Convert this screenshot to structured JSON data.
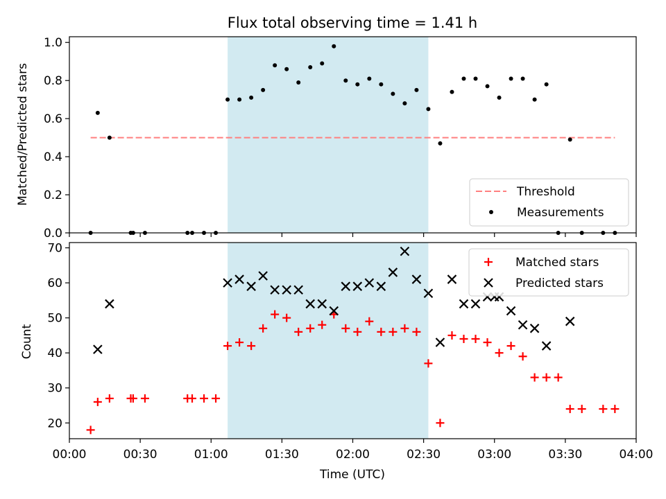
{
  "chart_data": [
    {
      "type": "scatter",
      "title": "Flux total observing time = 1.41 h",
      "xlabel": "",
      "ylabel": "Matched/Predicted stars",
      "xlim": [
        "00:00",
        "04:00"
      ],
      "ylim": [
        0,
        1.03
      ],
      "yticks": [
        "0.0",
        "0.2",
        "0.4",
        "0.6",
        "0.8",
        "1.0"
      ],
      "shaded_interval": [
        "01:07",
        "02:32"
      ],
      "shade_color": "#add8e6",
      "threshold": {
        "name": "Threshold",
        "value": 0.5,
        "x_range": [
          "00:09",
          "03:51"
        ],
        "color": "#ff7f7f"
      },
      "legend": [
        "Threshold",
        "Measurements"
      ],
      "legend_loc": "lower right",
      "series": [
        {
          "name": "Measurements",
          "color": "#000000",
          "marker": "dot",
          "points": [
            [
              "00:09",
              0.0
            ],
            [
              "00:12",
              0.63
            ],
            [
              "00:17",
              0.5
            ],
            [
              "00:26",
              0.0
            ],
            [
              "00:27",
              0.0
            ],
            [
              "00:32",
              0.0
            ],
            [
              "00:50",
              0.0
            ],
            [
              "00:52",
              0.0
            ],
            [
              "00:57",
              0.0
            ],
            [
              "01:02",
              0.0
            ],
            [
              "01:07",
              0.7
            ],
            [
              "01:12",
              0.7
            ],
            [
              "01:17",
              0.71
            ],
            [
              "01:22",
              0.75
            ],
            [
              "01:27",
              0.88
            ],
            [
              "01:32",
              0.86
            ],
            [
              "01:37",
              0.79
            ],
            [
              "01:42",
              0.87
            ],
            [
              "01:47",
              0.89
            ],
            [
              "01:52",
              0.98
            ],
            [
              "01:57",
              0.8
            ],
            [
              "02:02",
              0.78
            ],
            [
              "02:07",
              0.81
            ],
            [
              "02:12",
              0.78
            ],
            [
              "02:17",
              0.73
            ],
            [
              "02:22",
              0.68
            ],
            [
              "02:27",
              0.75
            ],
            [
              "02:32",
              0.65
            ],
            [
              "02:37",
              0.47
            ],
            [
              "02:42",
              0.74
            ],
            [
              "02:47",
              0.81
            ],
            [
              "02:52",
              0.81
            ],
            [
              "02:57",
              0.77
            ],
            [
              "03:02",
              0.71
            ],
            [
              "03:07",
              0.81
            ],
            [
              "03:12",
              0.81
            ],
            [
              "03:17",
              0.7
            ],
            [
              "03:22",
              0.78
            ],
            [
              "03:27",
              0.0
            ],
            [
              "03:32",
              0.49
            ],
            [
              "03:37",
              0.0
            ],
            [
              "03:46",
              0.0
            ],
            [
              "03:51",
              0.0
            ]
          ]
        }
      ]
    },
    {
      "type": "scatter",
      "title": "",
      "xlabel": "Time (UTC)",
      "ylabel": "Count",
      "xlim": [
        "00:00",
        "04:00"
      ],
      "xticks": [
        "00:00",
        "00:30",
        "01:00",
        "01:30",
        "02:00",
        "02:30",
        "03:00",
        "03:30",
        "04:00"
      ],
      "ylim": [
        15.5,
        71.5
      ],
      "yticks": [
        "20",
        "30",
        "40",
        "50",
        "60",
        "70"
      ],
      "shaded_interval": [
        "01:07",
        "02:32"
      ],
      "shade_color": "#add8e6",
      "legend": [
        "Matched stars",
        "Predicted stars"
      ],
      "legend_loc": "upper right",
      "series": [
        {
          "name": "Matched stars",
          "color": "#ff0000",
          "marker": "plus",
          "points": [
            [
              "00:09",
              18
            ],
            [
              "00:12",
              26
            ],
            [
              "00:17",
              27
            ],
            [
              "00:26",
              27
            ],
            [
              "00:27",
              27
            ],
            [
              "00:32",
              27
            ],
            [
              "00:50",
              27
            ],
            [
              "00:52",
              27
            ],
            [
              "00:57",
              27
            ],
            [
              "01:02",
              27
            ],
            [
              "01:07",
              42
            ],
            [
              "01:12",
              43
            ],
            [
              "01:17",
              42
            ],
            [
              "01:22",
              47
            ],
            [
              "01:27",
              51
            ],
            [
              "01:32",
              50
            ],
            [
              "01:37",
              46
            ],
            [
              "01:42",
              47
            ],
            [
              "01:47",
              48
            ],
            [
              "01:52",
              51
            ],
            [
              "01:57",
              47
            ],
            [
              "02:02",
              46
            ],
            [
              "02:07",
              49
            ],
            [
              "02:12",
              46
            ],
            [
              "02:17",
              46
            ],
            [
              "02:22",
              47
            ],
            [
              "02:27",
              46
            ],
            [
              "02:32",
              37
            ],
            [
              "02:37",
              20
            ],
            [
              "02:42",
              45
            ],
            [
              "02:47",
              44
            ],
            [
              "02:52",
              44
            ],
            [
              "02:57",
              43
            ],
            [
              "03:02",
              40
            ],
            [
              "03:07",
              42
            ],
            [
              "03:12",
              39
            ],
            [
              "03:17",
              33
            ],
            [
              "03:22",
              33
            ],
            [
              "03:27",
              33
            ],
            [
              "03:32",
              24
            ],
            [
              "03:37",
              24
            ],
            [
              "03:46",
              24
            ],
            [
              "03:51",
              24
            ]
          ]
        },
        {
          "name": "Predicted stars",
          "color": "#000000",
          "marker": "x",
          "points": [
            [
              "00:12",
              41
            ],
            [
              "00:17",
              54
            ],
            [
              "01:07",
              60
            ],
            [
              "01:12",
              61
            ],
            [
              "01:17",
              59
            ],
            [
              "01:22",
              62
            ],
            [
              "01:27",
              58
            ],
            [
              "01:32",
              58
            ],
            [
              "01:37",
              58
            ],
            [
              "01:42",
              54
            ],
            [
              "01:47",
              54
            ],
            [
              "01:52",
              52
            ],
            [
              "01:57",
              59
            ],
            [
              "02:02",
              59
            ],
            [
              "02:07",
              60
            ],
            [
              "02:12",
              59
            ],
            [
              "02:17",
              63
            ],
            [
              "02:22",
              69
            ],
            [
              "02:27",
              61
            ],
            [
              "02:32",
              57
            ],
            [
              "02:37",
              43
            ],
            [
              "02:42",
              61
            ],
            [
              "02:47",
              54
            ],
            [
              "02:52",
              54
            ],
            [
              "02:57",
              56
            ],
            [
              "03:00",
              56
            ],
            [
              "03:02",
              56
            ],
            [
              "03:07",
              52
            ],
            [
              "03:12",
              48
            ],
            [
              "03:17",
              47
            ],
            [
              "03:22",
              42
            ],
            [
              "03:32",
              49
            ]
          ]
        }
      ]
    }
  ]
}
